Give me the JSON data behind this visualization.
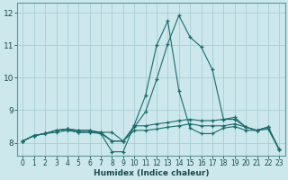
{
  "xlabel": "Humidex (Indice chaleur)",
  "xlim": [
    -0.5,
    23.5
  ],
  "ylim": [
    7.6,
    12.3
  ],
  "xticks": [
    0,
    1,
    2,
    3,
    4,
    5,
    6,
    7,
    8,
    9,
    10,
    11,
    12,
    13,
    14,
    15,
    16,
    17,
    18,
    19,
    20,
    21,
    22,
    23
  ],
  "yticks": [
    8,
    9,
    10,
    11,
    12
  ],
  "bg_color": "#cce8ec",
  "grid_color": "#a8cdd4",
  "line_color": "#1a6b6b",
  "line1_y": [
    8.05,
    8.22,
    8.28,
    8.32,
    8.38,
    8.32,
    8.32,
    8.28,
    7.72,
    7.72,
    8.55,
    9.45,
    11.0,
    11.75,
    9.6,
    8.45,
    8.28,
    8.28,
    8.45,
    8.5,
    8.38,
    8.38,
    8.42,
    7.78
  ],
  "line2_y": [
    8.05,
    8.22,
    8.28,
    8.38,
    8.42,
    8.32,
    8.32,
    8.32,
    8.05,
    8.05,
    8.48,
    8.95,
    9.95,
    11.05,
    11.92,
    11.25,
    10.95,
    10.25,
    8.72,
    8.72,
    8.48,
    8.38,
    8.48,
    7.78
  ],
  "line3_y": [
    8.05,
    8.22,
    8.28,
    8.38,
    8.42,
    8.38,
    8.38,
    8.32,
    8.32,
    8.05,
    8.52,
    8.52,
    8.58,
    8.62,
    8.68,
    8.72,
    8.68,
    8.68,
    8.72,
    8.78,
    8.48,
    8.38,
    8.48,
    7.78
  ],
  "line4_y": [
    8.05,
    8.22,
    8.28,
    8.38,
    8.42,
    8.38,
    8.38,
    8.28,
    8.05,
    8.05,
    8.38,
    8.38,
    8.42,
    8.48,
    8.52,
    8.58,
    8.52,
    8.52,
    8.52,
    8.58,
    8.48,
    8.38,
    8.48,
    7.78
  ]
}
